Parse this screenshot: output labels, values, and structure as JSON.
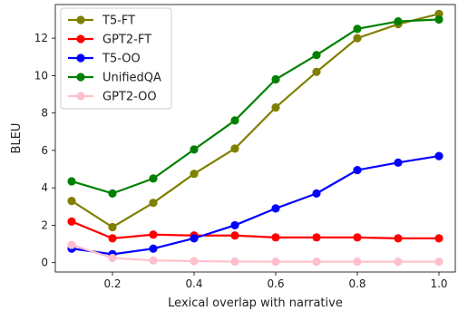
{
  "chart_data": {
    "type": "line",
    "xlabel": "Lexical overlap with narrative",
    "ylabel": "BLEU",
    "xlim": [
      0.06,
      1.04
    ],
    "ylim": [
      -0.5,
      13.8
    ],
    "xticks": [
      "0.2",
      "0.4",
      "0.6",
      "0.8",
      "1.0"
    ],
    "yticks": [
      "0",
      "2",
      "4",
      "6",
      "8",
      "10",
      "12"
    ],
    "grid": false,
    "legend_position": "top-left",
    "x": [
      0.1,
      0.2,
      0.3,
      0.4,
      0.5,
      0.6,
      0.7,
      0.8,
      0.9,
      1.0
    ],
    "series": [
      {
        "name": "T5-FT",
        "color": "#808000",
        "values": [
          3.3,
          1.9,
          3.2,
          4.75,
          6.1,
          8.3,
          10.2,
          12.0,
          12.75,
          13.3
        ]
      },
      {
        "name": "GPT2-FT",
        "color": "#ff0000",
        "values": [
          2.2,
          1.3,
          1.5,
          1.45,
          1.45,
          1.35,
          1.35,
          1.35,
          1.3,
          1.3
        ]
      },
      {
        "name": "T5-OO",
        "color": "#0000ff",
        "values": [
          0.75,
          0.45,
          0.75,
          1.3,
          2.0,
          2.9,
          3.7,
          4.95,
          5.35,
          5.7
        ]
      },
      {
        "name": "UnifiedQA",
        "color": "#008000",
        "values": [
          4.35,
          3.7,
          4.5,
          6.05,
          7.6,
          9.8,
          11.1,
          12.5,
          12.9,
          13.0
        ]
      },
      {
        "name": "GPT2-OO",
        "color": "#ffc0cb",
        "values": [
          0.95,
          0.25,
          0.12,
          0.08,
          0.06,
          0.05,
          0.05,
          0.05,
          0.05,
          0.05
        ]
      }
    ]
  }
}
